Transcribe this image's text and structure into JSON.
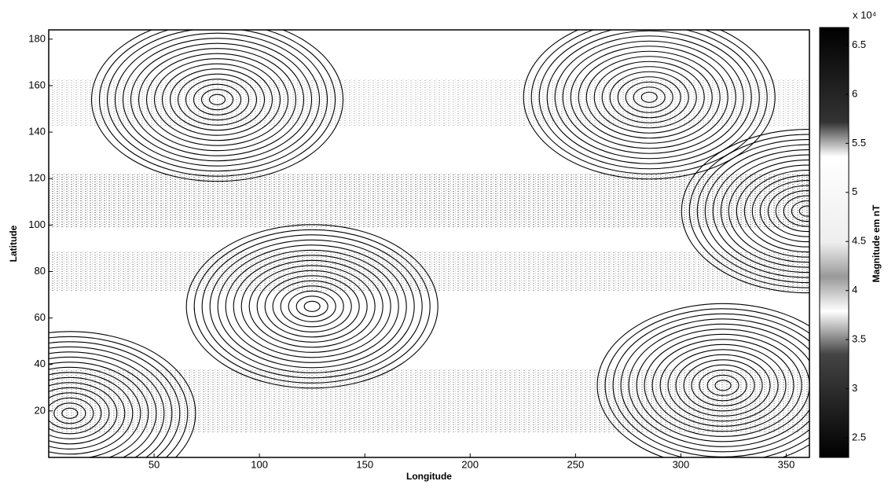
{
  "chart_data": {
    "type": "contour",
    "xlabel": "Longitude",
    "ylabel": "Latitude",
    "xlim": [
      0,
      361
    ],
    "xticks": [
      50,
      100,
      150,
      200,
      250,
      300,
      350
    ],
    "ylim": [
      0,
      184
    ],
    "yticks": [
      20,
      40,
      60,
      80,
      100,
      120,
      140,
      160,
      180
    ],
    "centers": {
      "x": [
        80,
        285,
        125,
        320,
        360,
        10
      ],
      "y": [
        154,
        155,
        65,
        31,
        106,
        19
      ]
    },
    "colorbar": {
      "label": "Magnitude em nT",
      "exponent": "x 10⁴",
      "clim": [
        2.3,
        6.68
      ],
      "ticks": [
        2.5,
        3,
        3.5,
        4,
        4.5,
        5,
        5.5,
        6,
        6.5
      ]
    }
  }
}
